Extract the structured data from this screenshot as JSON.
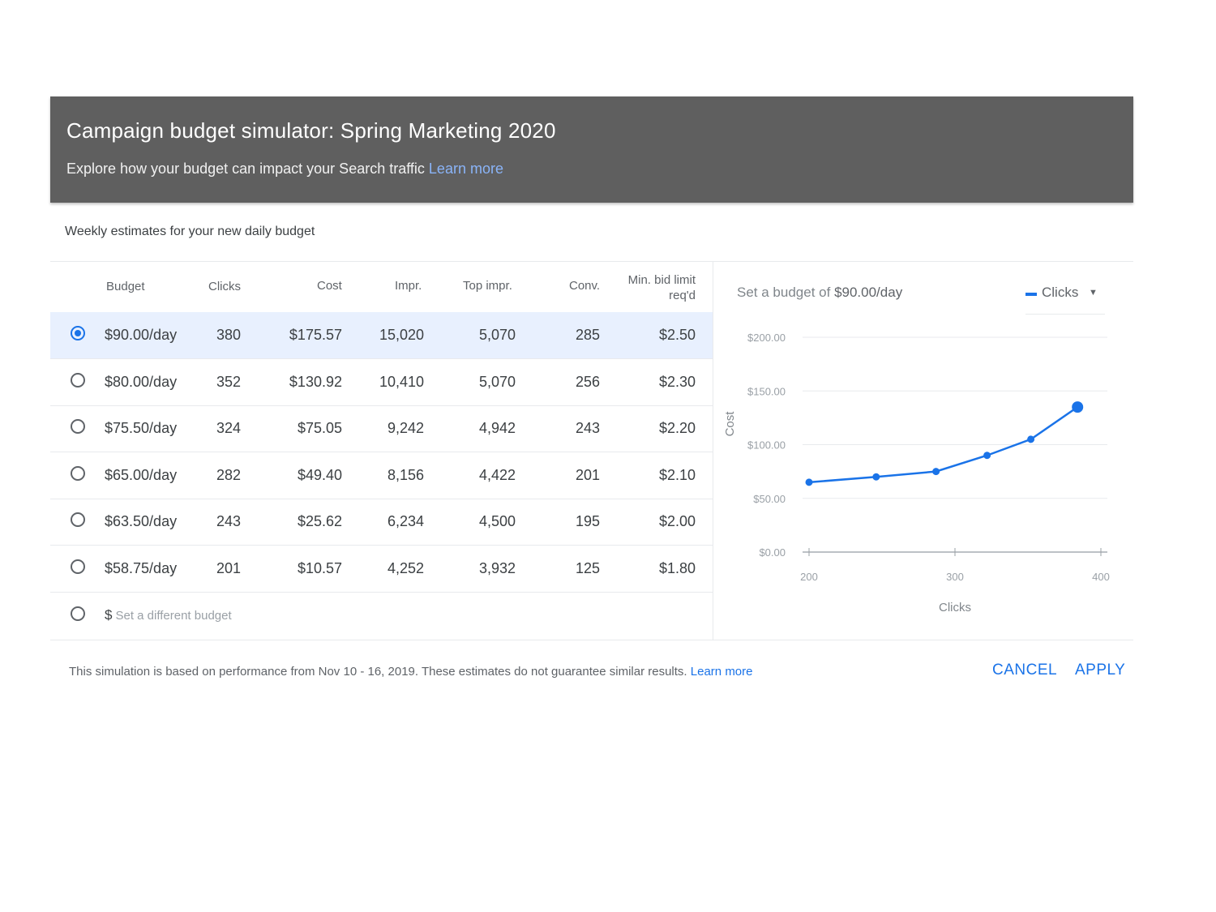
{
  "header": {
    "title": "Campaign budget simulator: Spring Marketing 2020",
    "subtitle": "Explore how your budget can impact your Search traffic",
    "learn_more": "Learn more"
  },
  "weekly_label": "Weekly estimates for your new daily budget",
  "table": {
    "headers": {
      "budget": "Budget",
      "clicks": "Clicks",
      "cost": "Cost",
      "impr": "Impr.",
      "top_impr": "Top impr.",
      "conv": "Conv.",
      "min_bid_1": "Min. bid limit",
      "min_bid_2": "req'd"
    },
    "rows": [
      {
        "budget": "$90.00/day",
        "clicks": "380",
        "cost": "$175.57",
        "impr": "15,020",
        "top_impr": "5,070",
        "conv": "285",
        "min_bid": "$2.50",
        "selected": true
      },
      {
        "budget": "$80.00/day",
        "clicks": "352",
        "cost": "$130.92",
        "impr": "10,410",
        "top_impr": "5,070",
        "conv": "256",
        "min_bid": "$2.30",
        "selected": false
      },
      {
        "budget": "$75.50/day",
        "clicks": "324",
        "cost": "$75.05",
        "impr": "9,242",
        "top_impr": "4,942",
        "conv": "243",
        "min_bid": "$2.20",
        "selected": false
      },
      {
        "budget": "$65.00/day",
        "clicks": "282",
        "cost": "$49.40",
        "impr": "8,156",
        "top_impr": "4,422",
        "conv": "201",
        "min_bid": "$2.10",
        "selected": false
      },
      {
        "budget": "$63.50/day",
        "clicks": "243",
        "cost": "$25.62",
        "impr": "6,234",
        "top_impr": "4,500",
        "conv": "195",
        "min_bid": "$2.00",
        "selected": false
      },
      {
        "budget": "$58.75/day",
        "clicks": "201",
        "cost": "$10.57",
        "impr": "4,252",
        "top_impr": "3,932",
        "conv": "125",
        "min_bid": "$1.80",
        "selected": false
      }
    ],
    "custom_budget": {
      "currency": "$",
      "placeholder": "Set a different budget"
    }
  },
  "chart_panel": {
    "caption_prefix": "Set a budget of",
    "caption_value": "$90.00/day",
    "metric_selected": "Clicks",
    "accent_color": "#1a73e8"
  },
  "chart_data": {
    "type": "line",
    "xlabel": "Clicks",
    "ylabel": "Cost",
    "xlim": [
      200,
      400
    ],
    "ylim": [
      0,
      200
    ],
    "x_ticks": [
      "200",
      "300",
      "400"
    ],
    "y_ticks": [
      "$0.00",
      "$50.00",
      "$100.00",
      "$150.00",
      "$200.00"
    ],
    "grid": true,
    "series": [
      {
        "points": [
          {
            "x": 200,
            "y": 65
          },
          {
            "x": 246,
            "y": 70
          },
          {
            "x": 287,
            "y": 75
          },
          {
            "x": 322,
            "y": 90
          },
          {
            "x": 352,
            "y": 105
          },
          {
            "x": 384,
            "y": 135
          }
        ],
        "highlight_last": true
      }
    ]
  },
  "footer": {
    "note": "This simulation is based on performance from Nov 10 - 16, 2019. These estimates do not guarantee similar results.",
    "learn_more": "Learn more",
    "cancel": "CANCEL",
    "apply": "APPLY"
  }
}
